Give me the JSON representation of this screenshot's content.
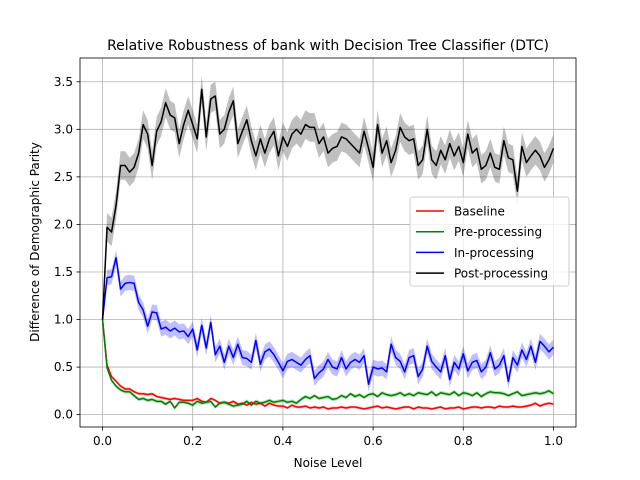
{
  "chart_data": {
    "type": "line",
    "title": "Relative Robustness of bank with Decision Tree Classifier (DTC)",
    "xlabel": "Noise Level",
    "ylabel": "Difference of Demographic Parity",
    "xlim": [
      -0.05,
      1.05
    ],
    "ylim": [
      -0.13,
      3.75
    ],
    "xticks": [
      0.0,
      0.2,
      0.4,
      0.6,
      0.8,
      1.0
    ],
    "xtick_labels": [
      "0.0",
      "0.2",
      "0.4",
      "0.6",
      "0.8",
      "1.0"
    ],
    "yticks": [
      0.0,
      0.5,
      1.0,
      1.5,
      2.0,
      2.5,
      3.0,
      3.5
    ],
    "ytick_labels": [
      "0.0",
      "0.5",
      "1.0",
      "1.5",
      "2.0",
      "2.5",
      "3.0",
      "3.5"
    ],
    "grid": true,
    "legend_position": "center-right",
    "x": [
      0.0,
      0.01,
      0.02,
      0.03,
      0.04,
      0.05,
      0.06,
      0.07,
      0.08,
      0.09,
      0.1,
      0.11,
      0.12,
      0.13,
      0.14,
      0.15,
      0.16,
      0.17,
      0.18,
      0.19,
      0.2,
      0.21,
      0.22,
      0.23,
      0.24,
      0.25,
      0.26,
      0.27,
      0.28,
      0.29,
      0.3,
      0.31,
      0.32,
      0.33,
      0.34,
      0.35,
      0.36,
      0.37,
      0.38,
      0.39,
      0.4,
      0.41,
      0.42,
      0.43,
      0.44,
      0.45,
      0.46,
      0.47,
      0.48,
      0.49,
      0.5,
      0.51,
      0.52,
      0.53,
      0.54,
      0.55,
      0.56,
      0.57,
      0.58,
      0.59,
      0.6,
      0.61,
      0.62,
      0.63,
      0.64,
      0.65,
      0.66,
      0.67,
      0.68,
      0.69,
      0.7,
      0.71,
      0.72,
      0.73,
      0.74,
      0.75,
      0.76,
      0.77,
      0.78,
      0.79,
      0.8,
      0.81,
      0.82,
      0.83,
      0.84,
      0.85,
      0.86,
      0.87,
      0.88,
      0.89,
      0.9,
      0.91,
      0.92,
      0.93,
      0.94,
      0.95,
      0.96,
      0.97,
      0.98,
      0.99,
      1.0
    ],
    "series": [
      {
        "name": "Baseline",
        "color": "#ff0000",
        "band": 0.015,
        "values": [
          1.0,
          0.52,
          0.4,
          0.35,
          0.3,
          0.27,
          0.27,
          0.24,
          0.22,
          0.22,
          0.21,
          0.22,
          0.19,
          0.18,
          0.17,
          0.16,
          0.17,
          0.16,
          0.15,
          0.15,
          0.15,
          0.17,
          0.14,
          0.13,
          0.17,
          0.15,
          0.12,
          0.13,
          0.12,
          0.14,
          0.11,
          0.12,
          0.1,
          0.13,
          0.11,
          0.12,
          0.09,
          0.12,
          0.1,
          0.09,
          0.09,
          0.07,
          0.1,
          0.08,
          0.08,
          0.09,
          0.07,
          0.08,
          0.07,
          0.08,
          0.06,
          0.07,
          0.07,
          0.08,
          0.07,
          0.08,
          0.08,
          0.07,
          0.06,
          0.07,
          0.08,
          0.09,
          0.07,
          0.08,
          0.07,
          0.06,
          0.07,
          0.08,
          0.08,
          0.06,
          0.08,
          0.07,
          0.07,
          0.06,
          0.07,
          0.08,
          0.06,
          0.07,
          0.07,
          0.08,
          0.06,
          0.07,
          0.08,
          0.08,
          0.07,
          0.08,
          0.08,
          0.07,
          0.09,
          0.08,
          0.08,
          0.09,
          0.08,
          0.08,
          0.09,
          0.1,
          0.12,
          0.09,
          0.11,
          0.12,
          0.11
        ]
      },
      {
        "name": "Pre-processing",
        "color": "#008000",
        "band": 0.02,
        "values": [
          1.0,
          0.49,
          0.36,
          0.3,
          0.26,
          0.24,
          0.24,
          0.2,
          0.16,
          0.17,
          0.15,
          0.16,
          0.14,
          0.14,
          0.11,
          0.14,
          0.07,
          0.13,
          0.13,
          0.12,
          0.1,
          0.14,
          0.12,
          0.13,
          0.14,
          0.08,
          0.12,
          0.13,
          0.11,
          0.09,
          0.1,
          0.11,
          0.14,
          0.1,
          0.14,
          0.12,
          0.13,
          0.15,
          0.13,
          0.14,
          0.15,
          0.13,
          0.14,
          0.12,
          0.16,
          0.19,
          0.17,
          0.2,
          0.17,
          0.18,
          0.19,
          0.16,
          0.17,
          0.2,
          0.18,
          0.22,
          0.19,
          0.21,
          0.18,
          0.21,
          0.22,
          0.19,
          0.23,
          0.21,
          0.2,
          0.21,
          0.23,
          0.2,
          0.22,
          0.2,
          0.23,
          0.22,
          0.21,
          0.24,
          0.2,
          0.23,
          0.22,
          0.21,
          0.24,
          0.2,
          0.23,
          0.22,
          0.2,
          0.23,
          0.19,
          0.22,
          0.24,
          0.23,
          0.23,
          0.22,
          0.2,
          0.22,
          0.24,
          0.2,
          0.21,
          0.22,
          0.23,
          0.22,
          0.23,
          0.25,
          0.22
        ]
      },
      {
        "name": "In-processing",
        "color": "#0000ff",
        "band": 0.08,
        "values": [
          1.0,
          1.44,
          1.45,
          1.65,
          1.32,
          1.38,
          1.39,
          1.38,
          1.18,
          1.1,
          0.93,
          1.08,
          1.07,
          0.9,
          0.92,
          0.88,
          0.91,
          0.87,
          0.88,
          0.82,
          0.9,
          0.68,
          0.94,
          0.7,
          0.97,
          0.63,
          0.72,
          0.55,
          0.72,
          0.6,
          0.74,
          0.6,
          0.59,
          0.55,
          0.78,
          0.53,
          0.66,
          0.69,
          0.63,
          0.55,
          0.46,
          0.56,
          0.58,
          0.55,
          0.52,
          0.58,
          0.62,
          0.38,
          0.44,
          0.48,
          0.58,
          0.5,
          0.48,
          0.6,
          0.48,
          0.55,
          0.58,
          0.55,
          0.62,
          0.32,
          0.5,
          0.48,
          0.49,
          0.45,
          0.74,
          0.6,
          0.56,
          0.45,
          0.6,
          0.62,
          0.4,
          0.48,
          0.72,
          0.56,
          0.5,
          0.45,
          0.62,
          0.37,
          0.55,
          0.48,
          0.64,
          0.46,
          0.55,
          0.57,
          0.45,
          0.5,
          0.65,
          0.48,
          0.52,
          0.62,
          0.35,
          0.6,
          0.52,
          0.68,
          0.58,
          0.72,
          0.55,
          0.77,
          0.72,
          0.66,
          0.71
        ]
      },
      {
        "name": "Post-processing",
        "color": "#000000",
        "band": 0.15,
        "values": [
          1.0,
          1.97,
          1.92,
          2.2,
          2.62,
          2.62,
          2.55,
          2.6,
          2.75,
          3.05,
          2.95,
          2.62,
          2.98,
          3.08,
          3.28,
          3.15,
          3.12,
          2.85,
          3.05,
          3.2,
          3.05,
          2.9,
          3.42,
          2.92,
          3.32,
          3.35,
          2.95,
          3.0,
          3.18,
          3.3,
          2.85,
          2.98,
          3.1,
          2.88,
          2.72,
          2.9,
          2.75,
          2.9,
          2.98,
          2.72,
          2.92,
          2.82,
          2.95,
          3.0,
          2.95,
          3.05,
          3.02,
          3.02,
          2.85,
          2.92,
          2.75,
          2.8,
          2.82,
          2.92,
          2.9,
          2.85,
          2.8,
          2.75,
          2.98,
          2.8,
          2.6,
          3.05,
          2.75,
          2.88,
          2.65,
          2.78,
          3.02,
          2.92,
          2.88,
          2.9,
          2.62,
          2.68,
          3.0,
          2.68,
          2.62,
          2.78,
          2.68,
          2.85,
          2.72,
          2.82,
          2.65,
          2.95,
          2.75,
          2.8,
          2.58,
          2.62,
          2.75,
          2.6,
          2.58,
          2.88,
          2.7,
          2.68,
          2.35,
          2.82,
          2.65,
          2.72,
          2.78,
          2.72,
          2.6,
          2.68,
          2.8
        ]
      }
    ]
  }
}
